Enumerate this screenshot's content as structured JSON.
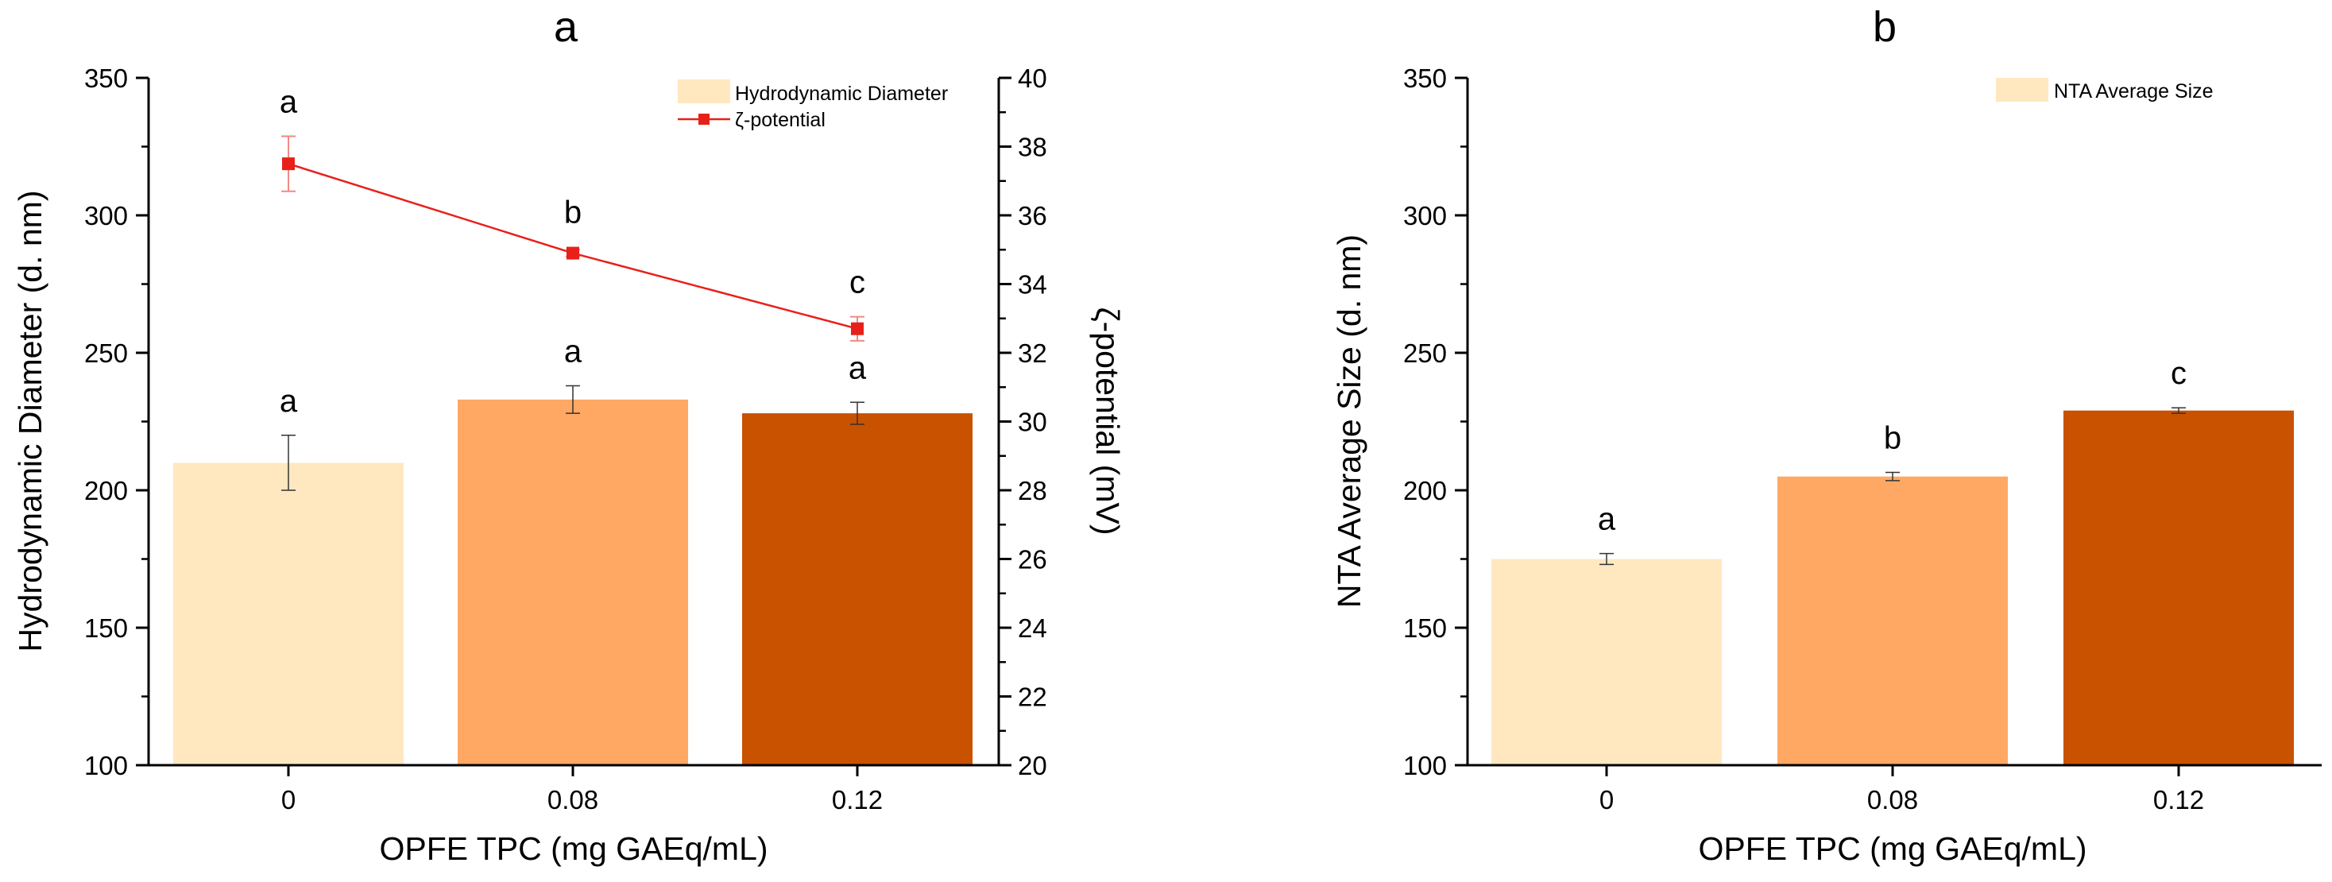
{
  "chart_data": [
    {
      "panel_label": "a",
      "type": "bar",
      "xlabel": "OPFE TPC (mg GAEq/mL)",
      "ylabel": "Hydrodynamic Diameter (d. nm)",
      "y2label": "ζ-potential (mV)",
      "categories": [
        "0",
        "0.08",
        "0.12"
      ],
      "ylim": [
        100,
        350
      ],
      "yticks": [
        100,
        150,
        200,
        250,
        300,
        350
      ],
      "y2lim": [
        20,
        40
      ],
      "y2ticks": [
        20,
        22,
        24,
        26,
        28,
        30,
        32,
        34,
        36,
        38,
        40
      ],
      "series": [
        {
          "name": "Hydrodynamic Diameter",
          "kind": "bar",
          "axis": "left",
          "values": [
            210,
            233,
            228
          ],
          "errors": [
            10,
            5,
            4
          ],
          "colors": [
            "#FFE8C0",
            "#FFA864",
            "#C85200"
          ],
          "sig_letters": [
            "a",
            "a",
            "a"
          ]
        },
        {
          "name": "ζ-potential",
          "kind": "line",
          "axis": "right",
          "color": "#E8201A",
          "values": [
            37.5,
            34.9,
            32.7
          ],
          "errors": [
            0.8,
            0.1,
            0.35
          ],
          "sig_letters": [
            "a",
            "b",
            "c"
          ]
        }
      ],
      "legend": [
        "Hydrodynamic Diameter",
        "ζ-potential"
      ],
      "legend_position": "top-right"
    },
    {
      "panel_label": "b",
      "type": "bar",
      "xlabel": "OPFE TPC (mg GAEq/mL)",
      "ylabel": "NTA Average Size (d. nm)",
      "categories": [
        "0",
        "0.08",
        "0.12"
      ],
      "ylim": [
        100,
        350
      ],
      "yticks": [
        100,
        150,
        200,
        250,
        300,
        350
      ],
      "series": [
        {
          "name": "NTA Average Size",
          "kind": "bar",
          "axis": "left",
          "values": [
            175,
            205,
            229
          ],
          "errors": [
            2,
            1.5,
            1
          ],
          "colors": [
            "#FFE8C0",
            "#FFA864",
            "#C85200"
          ],
          "sig_letters": [
            "a",
            "b",
            "c"
          ]
        }
      ],
      "legend": [
        "NTA Average Size"
      ],
      "legend_position": "top-right"
    }
  ]
}
